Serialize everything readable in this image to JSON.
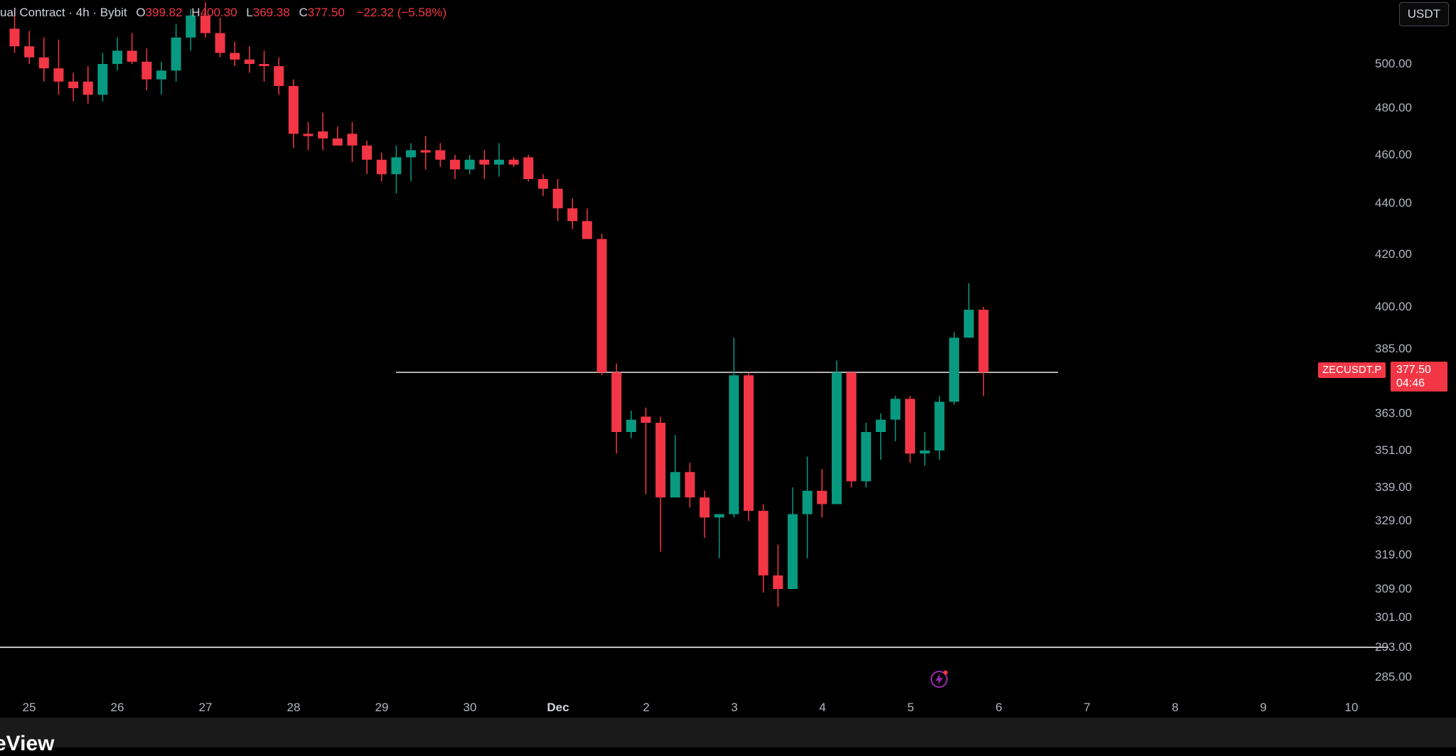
{
  "header": {
    "symbol": "ual Contract · 4h · Bybit",
    "open_label": "O",
    "open": "399.82",
    "high_label": "H",
    "high": "400.30",
    "low_label": "L",
    "low": "369.38",
    "close_label": "C",
    "close": "377.50",
    "change": "−22.32 (−5.58%)"
  },
  "currency_button": "USDT",
  "symbol_tag": "ZECUSDT.P",
  "last_price": "377.50",
  "countdown": "04:46",
  "brand": "eView",
  "colors": {
    "up": "#089981",
    "down": "#f23645",
    "background": "#000000",
    "line": "#ffffff"
  },
  "indicator_icon": "lightning-bolt-icon",
  "chart_data": {
    "type": "candlestick",
    "timeframe": "4h",
    "y_tick_labels": [
      "500.00",
      "480.00",
      "460.00",
      "440.00",
      "420.00",
      "400.00",
      "385.00",
      "363.00",
      "351.00",
      "339.00",
      "329.00",
      "319.00",
      "309.00",
      "301.00",
      "293.00",
      "285.00"
    ],
    "x_tick_labels": [
      "25",
      "26",
      "27",
      "28",
      "29",
      "30",
      "Dec",
      "2",
      "3",
      "4",
      "5",
      "6",
      "7",
      "8",
      "9",
      "10"
    ],
    "bold_x_tick": "Dec",
    "horizontal_lines": [
      {
        "price": 377.0
      },
      {
        "price": 293.0
      }
    ],
    "candles": [
      [
        516,
        525,
        505,
        508
      ],
      [
        508,
        515,
        500,
        503
      ],
      [
        503,
        512,
        492,
        498
      ],
      [
        498,
        511,
        486,
        492
      ],
      [
        492,
        496,
        483,
        489
      ],
      [
        492,
        499,
        482,
        486
      ],
      [
        486,
        505,
        483,
        500
      ],
      [
        500,
        512,
        497,
        506
      ],
      [
        506,
        514,
        500,
        501
      ],
      [
        501,
        507,
        488,
        493
      ],
      [
        493,
        501,
        486,
        497
      ],
      [
        497,
        518,
        492,
        512
      ],
      [
        512,
        525,
        506,
        522
      ],
      [
        522,
        528,
        512,
        514
      ],
      [
        514,
        521,
        503,
        505
      ],
      [
        505,
        510,
        499,
        502
      ],
      [
        502,
        508,
        496,
        500
      ],
      [
        500,
        506,
        492,
        499
      ],
      [
        499,
        503,
        486,
        490
      ],
      [
        490,
        493,
        463,
        469
      ],
      [
        469,
        474,
        462,
        468
      ],
      [
        470,
        478,
        462,
        467
      ],
      [
        467,
        472,
        464,
        464
      ],
      [
        469,
        474,
        457,
        464
      ],
      [
        464,
        466,
        452,
        458
      ],
      [
        458,
        461,
        449,
        452
      ],
      [
        452,
        464,
        444,
        459
      ],
      [
        459,
        465,
        449,
        462
      ],
      [
        462,
        468,
        454,
        461
      ],
      [
        462,
        465,
        455,
        458
      ],
      [
        458,
        460,
        450,
        454
      ],
      [
        454,
        460,
        452,
        458
      ],
      [
        458,
        462,
        450,
        456
      ],
      [
        456,
        465,
        451,
        458
      ],
      [
        458,
        459,
        455,
        456
      ],
      [
        459,
        460,
        449,
        450
      ],
      [
        450,
        452,
        443,
        446
      ],
      [
        446,
        450,
        433,
        438
      ],
      [
        438,
        442,
        430,
        433
      ],
      [
        433,
        438,
        426,
        426
      ],
      [
        426,
        428,
        376,
        377
      ],
      [
        377,
        380,
        350,
        357
      ],
      [
        357,
        364,
        355,
        361
      ],
      [
        362,
        365,
        337,
        360
      ],
      [
        360,
        362,
        320,
        336
      ],
      [
        336,
        356,
        336,
        344
      ],
      [
        344,
        347,
        333,
        336
      ],
      [
        336,
        338,
        324,
        330
      ],
      [
        330,
        331,
        318,
        331
      ],
      [
        331,
        389,
        330,
        376
      ],
      [
        376,
        377,
        329,
        332
      ],
      [
        332,
        334,
        308,
        313
      ],
      [
        313,
        322,
        304,
        309
      ],
      [
        309,
        339,
        309,
        331
      ],
      [
        331,
        349,
        318,
        338
      ],
      [
        338,
        345,
        330,
        334
      ],
      [
        334,
        381,
        334,
        377
      ],
      [
        377,
        377,
        339,
        341
      ],
      [
        341,
        360,
        339,
        357
      ],
      [
        357,
        363,
        348,
        361
      ],
      [
        361,
        369,
        354,
        368
      ],
      [
        368,
        369,
        347,
        350
      ],
      [
        350,
        357,
        346,
        351
      ],
      [
        351,
        369,
        348,
        367
      ],
      [
        367,
        391,
        366,
        389
      ],
      [
        389,
        409,
        389,
        399
      ],
      [
        399,
        400,
        369,
        377
      ]
    ]
  }
}
